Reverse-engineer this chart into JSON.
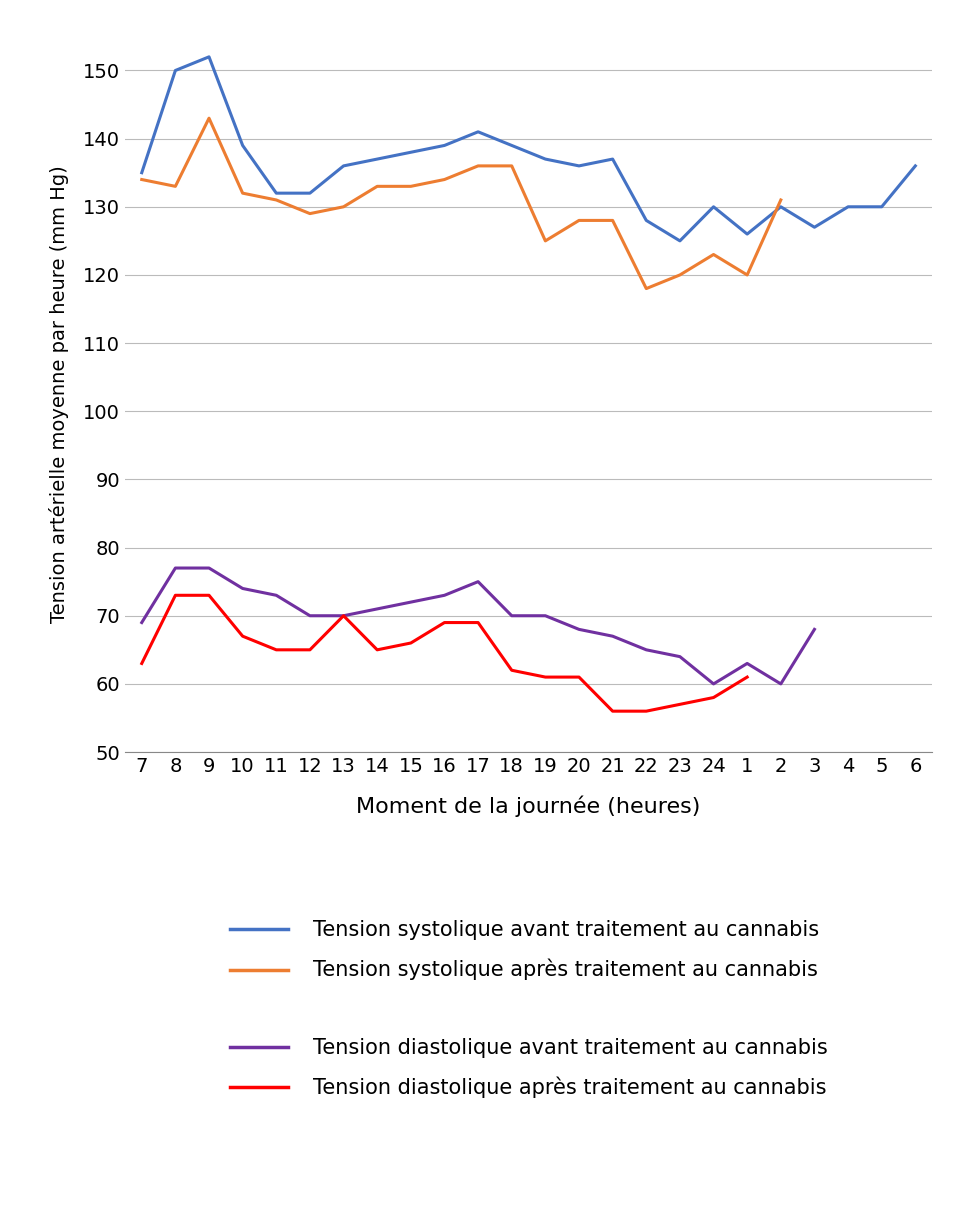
{
  "x_labels": [
    "7",
    "8",
    "9",
    "10",
    "11",
    "12",
    "13",
    "14",
    "15",
    "16",
    "17",
    "18",
    "19",
    "20",
    "21",
    "22",
    "23",
    "24",
    "1",
    "2",
    "3",
    "4",
    "5",
    "6"
  ],
  "systolique_avant": [
    135,
    150,
    152,
    139,
    132,
    132,
    136,
    137,
    138,
    139,
    141,
    139,
    137,
    136,
    137,
    128,
    125,
    130,
    126,
    130,
    127,
    130,
    130,
    136
  ],
  "systolique_apres": [
    134,
    133,
    143,
    132,
    131,
    129,
    130,
    133,
    133,
    134,
    136,
    136,
    125,
    128,
    128,
    118,
    120,
    123,
    120,
    131,
    null,
    null,
    null,
    null
  ],
  "diastolique_avant": [
    69,
    77,
    77,
    74,
    73,
    70,
    70,
    71,
    72,
    73,
    75,
    70,
    70,
    68,
    67,
    65,
    64,
    60,
    63,
    60,
    68,
    null,
    null,
    null
  ],
  "diastolique_apres": [
    63,
    73,
    73,
    67,
    65,
    65,
    70,
    65,
    66,
    69,
    69,
    62,
    61,
    61,
    56,
    56,
    57,
    58,
    61,
    null,
    null,
    null,
    null,
    null
  ],
  "colors": {
    "systolique_avant": "#4472C4",
    "systolique_apres": "#ED7D31",
    "diastolique_avant": "#7030A0",
    "diastolique_apres": "#FF0000"
  },
  "ylabel": "Tension artérielle moyenne par heure (mm Hg)",
  "xlabel": "Moment de la journée (heures)",
  "ylim": [
    50,
    155
  ],
  "yticks": [
    50,
    60,
    70,
    80,
    90,
    100,
    110,
    120,
    130,
    140,
    150
  ],
  "legend": [
    "Tension systolique avant traitement au cannabis",
    "Tension systolique après traitement au cannabis",
    "",
    "Tension diastolique avant traitement au cannabis",
    "Tension diastolique après traitement au cannabis"
  ],
  "legend_colors": [
    "#4472C4",
    "#ED7D31",
    null,
    "#7030A0",
    "#FF0000"
  ],
  "linewidth": 2.2,
  "xlabel_fontsize": 16,
  "ylabel_fontsize": 14,
  "tick_fontsize": 14,
  "legend_fontsize": 15
}
